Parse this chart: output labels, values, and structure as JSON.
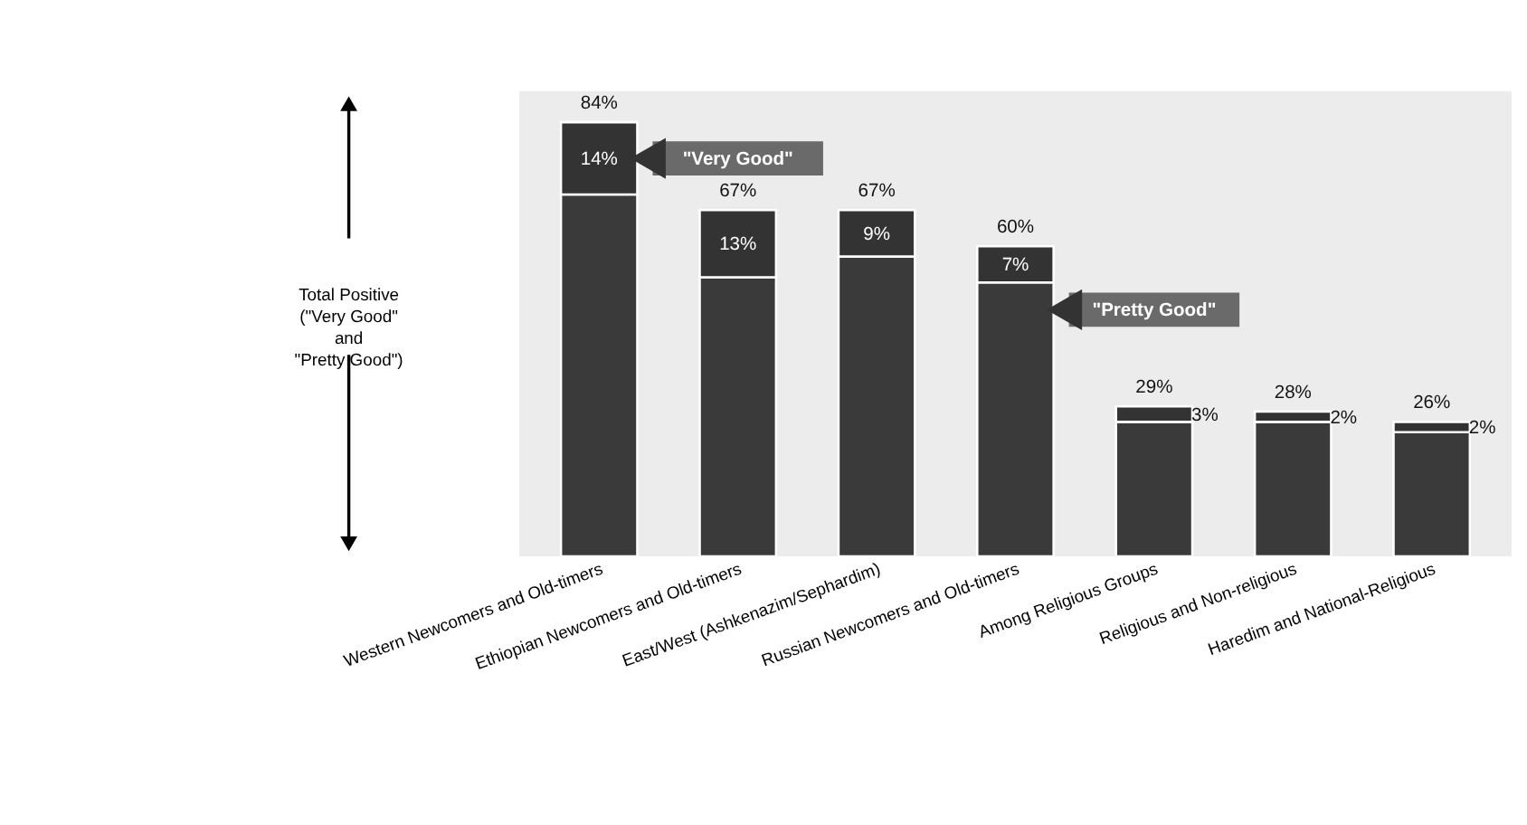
{
  "chart_data": {
    "type": "bar",
    "stacked": true,
    "ylabel": "Total Positive\n(\"Very Good\"\nand\n\"Pretty Good\")",
    "categories": [
      "Western Newcomers and Old-timers",
      "Ethiopian Newcomers and Old-timers",
      "East/West (Ashkenazim/Sephardim)",
      "Russian Newcomers and Old-timers",
      "Among Religious Groups",
      "Religious and Non-religious",
      "Haredim and National-Religious"
    ],
    "series": [
      {
        "name": "\"Pretty Good\"",
        "color": "#3a3a3a",
        "values": [
          70,
          54,
          58,
          53,
          26,
          26,
          24
        ]
      },
      {
        "name": "\"Very Good\"",
        "color": "#333333",
        "values": [
          14,
          13,
          9,
          7,
          3,
          2,
          2
        ],
        "value_labels": [
          "14%",
          "13%",
          "9%",
          "7%",
          "3%",
          "2%",
          "2%"
        ]
      }
    ],
    "totals": [
      "84%",
      "67%",
      "67%",
      "60%",
      "29%",
      "28%",
      "26%"
    ],
    "ylim": [
      0,
      90
    ],
    "grid": false,
    "legend": false
  }
}
